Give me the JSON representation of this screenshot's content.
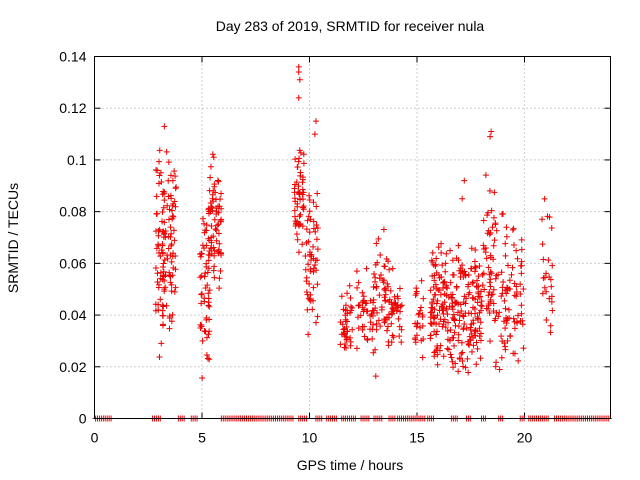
{
  "chart_data": {
    "type": "scatter",
    "title": "Day 283 of 2019, SRMTID for receiver nula",
    "xlabel": "GPS time / hours",
    "ylabel": "SRMTID / TECUs",
    "xlim": [
      0,
      24
    ],
    "ylim": [
      0,
      0.14
    ],
    "x_ticks": [
      0,
      5,
      10,
      15,
      20
    ],
    "x_tick_labels": [
      "0",
      "5",
      "10",
      "15",
      "20"
    ],
    "y_ticks": [
      0,
      0.02,
      0.04,
      0.06,
      0.08,
      0.1,
      0.12,
      0.14
    ],
    "y_tick_labels": [
      "0",
      "0.02",
      "0.04",
      "0.06",
      "0.08",
      "0.1",
      "0.12",
      "0.14"
    ],
    "grid": true,
    "marker": "+",
    "color": "#ee0000",
    "clusters": [
      {
        "x_range": [
          2.85,
          3.25
        ],
        "y_range": [
          0.022,
          0.11
        ],
        "count": 60,
        "extra": [
          [
            3.25,
            0.113
          ]
        ]
      },
      {
        "x_range": [
          3.2,
          3.8
        ],
        "y_range": [
          0.026,
          0.104
        ],
        "count": 70
      },
      {
        "x_range": [
          4.9,
          5.35
        ],
        "y_range": [
          0.015,
          0.088
        ],
        "count": 55
      },
      {
        "x_range": [
          5.3,
          5.9
        ],
        "y_range": [
          0.043,
          0.107
        ],
        "count": 70
      },
      {
        "x_range": [
          9.3,
          9.75
        ],
        "y_range": [
          0.058,
          0.105
        ],
        "count": 55,
        "extra": [
          [
            9.5,
            0.136
          ],
          [
            9.5,
            0.134
          ],
          [
            9.55,
            0.131
          ],
          [
            9.5,
            0.124
          ]
        ]
      },
      {
        "x_range": [
          9.8,
          10.4
        ],
        "y_range": [
          0.03,
          0.092
        ],
        "count": 55,
        "extra": [
          [
            10.25,
            0.11
          ],
          [
            10.3,
            0.115
          ]
        ]
      },
      {
        "x_range": [
          11.4,
          12.0
        ],
        "y_range": [
          0.019,
          0.055
        ],
        "count": 40
      },
      {
        "x_range": [
          12.2,
          13.0
        ],
        "y_range": [
          0.02,
          0.06
        ],
        "count": 45
      },
      {
        "x_range": [
          13.0,
          13.8
        ],
        "y_range": [
          0.015,
          0.077
        ],
        "count": 55
      },
      {
        "x_range": [
          13.8,
          14.3
        ],
        "y_range": [
          0.02,
          0.06
        ],
        "count": 35
      },
      {
        "x_range": [
          14.9,
          15.3
        ],
        "y_range": [
          0.016,
          0.057
        ],
        "count": 25
      },
      {
        "x_range": [
          15.6,
          16.9
        ],
        "y_range": [
          0.015,
          0.07
        ],
        "count": 140
      },
      {
        "x_range": [
          16.9,
          18.1
        ],
        "y_range": [
          0.014,
          0.07
        ],
        "count": 120,
        "extra": [
          [
            17.2,
            0.092
          ],
          [
            17.1,
            0.085
          ]
        ]
      },
      {
        "x_range": [
          18.1,
          18.6
        ],
        "y_range": [
          0.02,
          0.097
        ],
        "count": 45,
        "extra": [
          [
            18.45,
            0.111
          ],
          [
            18.4,
            0.109
          ]
        ]
      },
      {
        "x_range": [
          18.6,
          20.0
        ],
        "y_range": [
          0.017,
          0.082
        ],
        "count": 90
      },
      {
        "x_range": [
          20.8,
          21.3
        ],
        "y_range": [
          0.028,
          0.086
        ],
        "count": 25
      }
    ],
    "zero_segments": [
      [
        0.05,
        0.8
      ],
      [
        2.7,
        3.1
      ],
      [
        3.9,
        4.2
      ],
      [
        4.5,
        4.8
      ],
      [
        5.9,
        9.3
      ],
      [
        9.5,
        9.9
      ],
      [
        10.3,
        10.6
      ],
      [
        10.8,
        11.3
      ],
      [
        11.5,
        12.2
      ],
      [
        12.4,
        12.8
      ],
      [
        13.0,
        13.4
      ],
      [
        13.7,
        14.0
      ],
      [
        14.1,
        15.4
      ],
      [
        15.5,
        15.8
      ],
      [
        16.6,
        16.9
      ],
      [
        17.3,
        17.5
      ],
      [
        18.0,
        18.2
      ],
      [
        18.8,
        19.0
      ],
      [
        19.8,
        20.0
      ],
      [
        20.2,
        21.1
      ],
      [
        21.4,
        24.0
      ]
    ]
  }
}
